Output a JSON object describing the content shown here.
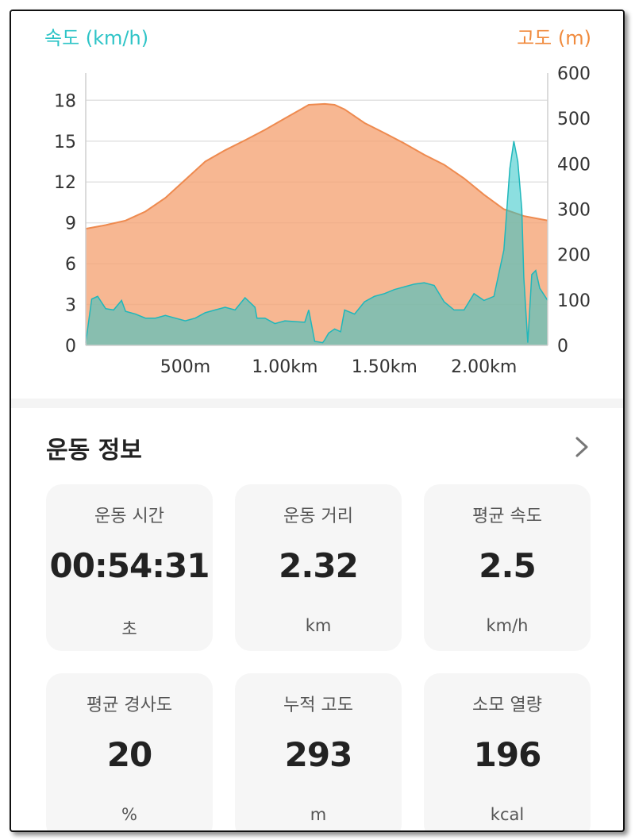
{
  "chart": {
    "left_axis_title": "속도 (km/h)",
    "right_axis_title": "고도 (m)",
    "speed_color": "#2ec4c7",
    "altitude_color": "#f5a577"
  },
  "chart_data": {
    "type": "area",
    "x_unit": "km",
    "xlim": [
      0,
      2.32
    ],
    "x_ticks": [
      0.5,
      1.0,
      1.5,
      2.0
    ],
    "x_tick_labels": [
      "500m",
      "1.00km",
      "1.50km",
      "2.00km"
    ],
    "y_left": {
      "ticks": [
        0,
        3,
        6,
        9,
        12,
        15,
        18
      ],
      "ylim": [
        0,
        20
      ]
    },
    "y_right": {
      "ticks": [
        0,
        100,
        200,
        300,
        400,
        500,
        600
      ],
      "ylim": [
        0,
        600
      ]
    },
    "grid": true,
    "series": [
      {
        "axis": "right",
        "x": [
          0,
          0.1,
          0.2,
          0.3,
          0.4,
          0.5,
          0.6,
          0.7,
          0.8,
          0.9,
          1.0,
          1.1,
          1.12,
          1.2,
          1.25,
          1.3,
          1.4,
          1.5,
          1.6,
          1.7,
          1.8,
          1.9,
          2.0,
          2.1,
          2.2,
          2.32
        ],
        "values": [
          257,
          265,
          275,
          295,
          325,
          365,
          405,
          430,
          452,
          475,
          500,
          525,
          530,
          532,
          530,
          520,
          490,
          468,
          445,
          420,
          398,
          368,
          332,
          300,
          285,
          275
        ]
      },
      {
        "axis": "left",
        "x": [
          0,
          0.03,
          0.06,
          0.1,
          0.14,
          0.18,
          0.2,
          0.25,
          0.3,
          0.35,
          0.4,
          0.45,
          0.5,
          0.55,
          0.6,
          0.65,
          0.7,
          0.75,
          0.8,
          0.85,
          0.86,
          0.9,
          0.95,
          1.0,
          1.1,
          1.12,
          1.15,
          1.19,
          1.2,
          1.22,
          1.25,
          1.28,
          1.3,
          1.35,
          1.4,
          1.45,
          1.5,
          1.55,
          1.6,
          1.65,
          1.7,
          1.75,
          1.8,
          1.85,
          1.9,
          1.95,
          2.0,
          2.05,
          2.1,
          2.13,
          2.15,
          2.17,
          2.19,
          2.2,
          2.22,
          2.24,
          2.26,
          2.28,
          2.32
        ],
        "values": [
          0.2,
          3.4,
          3.6,
          2.7,
          2.6,
          3.3,
          2.5,
          2.3,
          2.0,
          2.0,
          2.2,
          2.0,
          1.8,
          2.0,
          2.4,
          2.6,
          2.8,
          2.6,
          3.5,
          2.8,
          2.0,
          2.0,
          1.6,
          1.8,
          1.7,
          2.6,
          0.3,
          0.2,
          0.4,
          0.9,
          1.2,
          1.0,
          2.6,
          2.3,
          3.2,
          3.6,
          3.8,
          4.1,
          4.3,
          4.5,
          4.6,
          4.4,
          3.2,
          2.6,
          2.6,
          3.8,
          3.3,
          3.6,
          7.0,
          13.0,
          15.0,
          13.5,
          10.0,
          5.0,
          0.2,
          5.2,
          5.5,
          4.2,
          3.3
        ]
      }
    ]
  },
  "section": {
    "title": "운동 정보"
  },
  "cards": [
    {
      "label": "운동 시간",
      "value": "00:54:31",
      "unit": "초"
    },
    {
      "label": "운동 거리",
      "value": "2.32",
      "unit": "km"
    },
    {
      "label": "평균 속도",
      "value": "2.5",
      "unit": "km/h"
    },
    {
      "label": "평균 경사도",
      "value": "20",
      "unit": "%"
    },
    {
      "label": "누적 고도",
      "value": "293",
      "unit": "m"
    },
    {
      "label": "소모 열량",
      "value": "196",
      "unit": "kcal"
    }
  ],
  "icons": {
    "section_arrow": "chevron-right-icon"
  }
}
